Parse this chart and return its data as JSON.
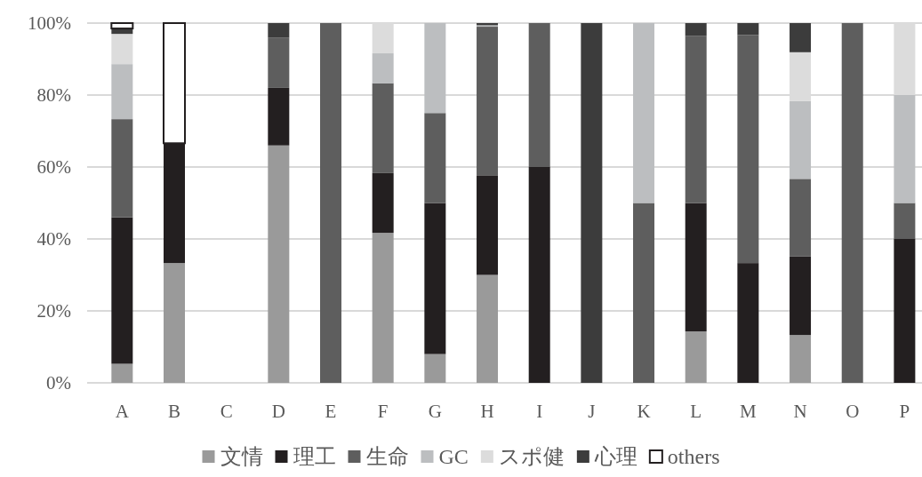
{
  "chart_data": {
    "type": "bar",
    "stacked": true,
    "categories": [
      "A",
      "B",
      "C",
      "D",
      "E",
      "F",
      "G",
      "H",
      "I",
      "J",
      "K",
      "L",
      "M",
      "N",
      "O",
      "P"
    ],
    "series": [
      {
        "name": "文情",
        "color": "#9a9a9a",
        "values": [
          5.3,
          33.3,
          null,
          66,
          null,
          41.7,
          8,
          30,
          null,
          null,
          null,
          14.3,
          null,
          13.3,
          null,
          null
        ]
      },
      {
        "name": "理工",
        "color": "#231f20",
        "values": [
          40.7,
          33.3,
          null,
          16,
          null,
          16.6,
          42,
          27.7,
          60,
          null,
          null,
          35.7,
          33.3,
          21.9,
          null,
          40
        ]
      },
      {
        "name": "生命",
        "color": "#5e5e5e",
        "values": [
          27.3,
          null,
          null,
          14,
          100,
          25,
          25,
          41.3,
          40,
          null,
          50,
          46.4,
          63.4,
          21.5,
          100,
          10
        ]
      },
      {
        "name": "GC",
        "color": "#bcbec0",
        "values": [
          15.3,
          null,
          null,
          null,
          null,
          8.3,
          25,
          0.4,
          null,
          null,
          50,
          null,
          null,
          21.6,
          null,
          30
        ]
      },
      {
        "name": "スポ健",
        "color": "#dcdcdc",
        "values": [
          8.4,
          null,
          null,
          null,
          null,
          8.4,
          null,
          null,
          null,
          null,
          null,
          null,
          null,
          13.6,
          null,
          20
        ]
      },
      {
        "name": "心理",
        "color": "#3c3c3c",
        "values": [
          1.5,
          null,
          null,
          4,
          null,
          null,
          null,
          0.6,
          null,
          100,
          null,
          3.6,
          3.3,
          8.1,
          null,
          null
        ]
      },
      {
        "name": "others",
        "color": "#ffffff",
        "values": [
          1.5,
          33.4,
          null,
          null,
          null,
          null,
          null,
          null,
          null,
          null,
          null,
          null,
          null,
          null,
          null,
          null
        ]
      }
    ],
    "ylim": [
      0,
      100
    ],
    "yticks": [
      {
        "value": 0,
        "label": "0%"
      },
      {
        "value": 20,
        "label": "20%"
      },
      {
        "value": 40,
        "label": "40%"
      },
      {
        "value": 60,
        "label": "60%"
      },
      {
        "value": 80,
        "label": "80%"
      },
      {
        "value": 100,
        "label": "100%"
      }
    ],
    "grid": "y",
    "legend": "bottom"
  }
}
